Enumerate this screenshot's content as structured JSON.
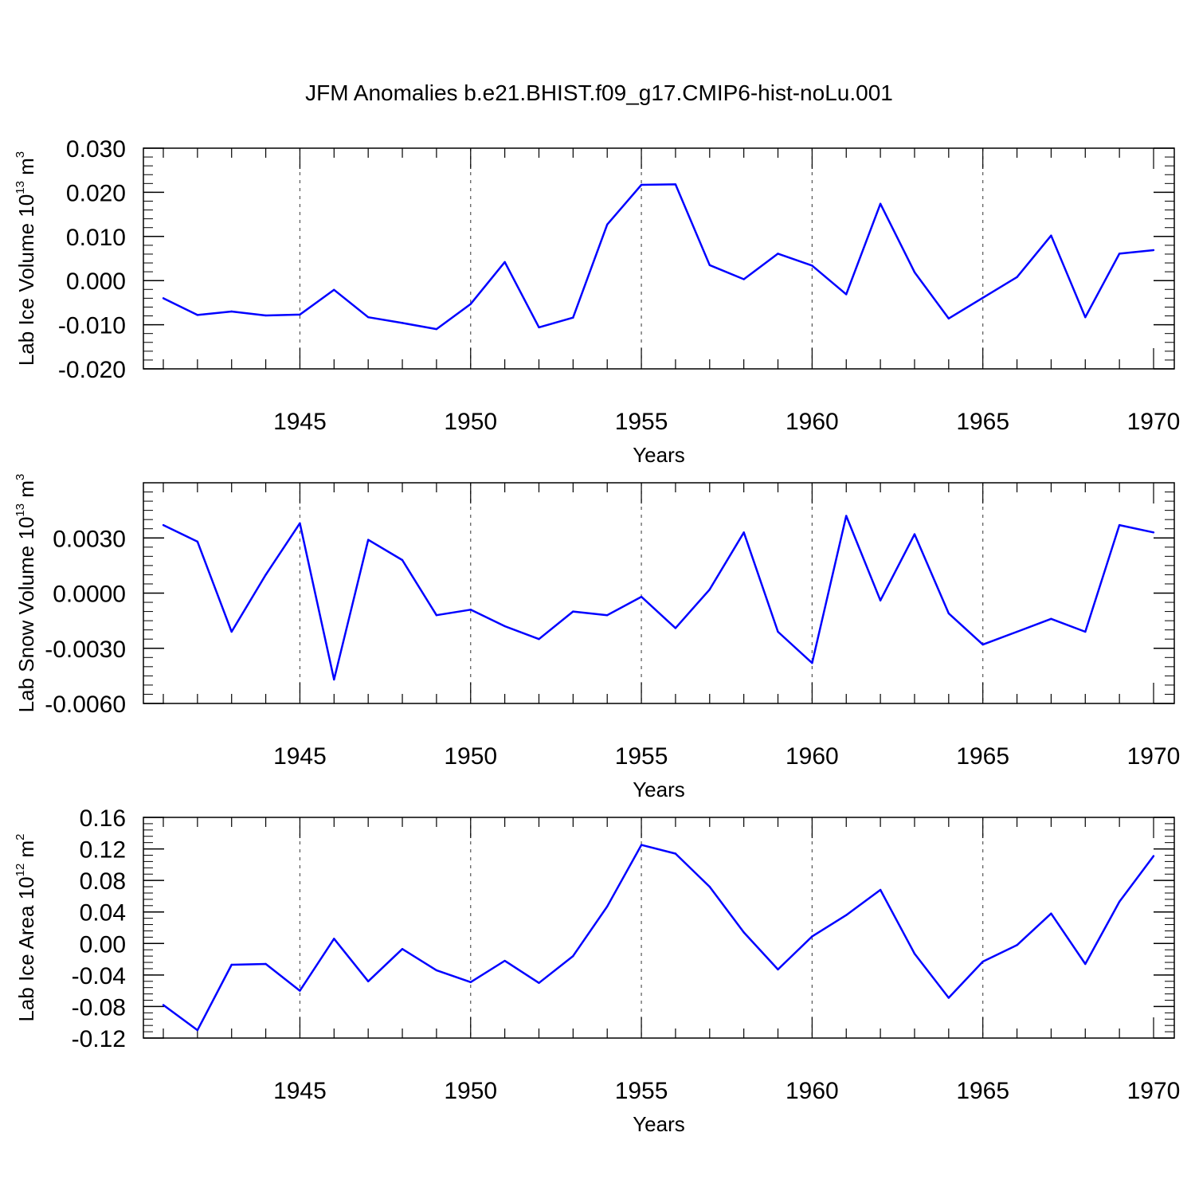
{
  "title": "JFM Anomalies b.e21.BHIST.f09_g17.CMIP6-hist-noLu.001",
  "colors": {
    "line": "#0000ff",
    "axis": "#000000",
    "grid": "#555555"
  },
  "chart_data": [
    {
      "type": "line",
      "ylabel": {
        "text": "Lab Ice Volume 10",
        "exp": "13",
        "unit": " m",
        "unit_exp": "3"
      },
      "xlabel": "Years",
      "xlim": [
        1941,
        1970
      ],
      "ylim": [
        -0.02,
        0.03
      ],
      "yticks": [
        -0.02,
        -0.01,
        0.0,
        0.01,
        0.02,
        0.03
      ],
      "yticklabels": [
        "-0.020",
        "-0.010",
        "0.000",
        "0.010",
        "0.020",
        "0.030"
      ],
      "yminor": 0.002,
      "xticks": [
        1945,
        1950,
        1955,
        1960,
        1965,
        1970
      ],
      "xticklabels": [
        "1945",
        "1950",
        "1955",
        "1960",
        "1965",
        "1970"
      ],
      "grid_x": true,
      "x": [
        1941,
        1942,
        1943,
        1944,
        1945,
        1946,
        1947,
        1948,
        1949,
        1950,
        1951,
        1952,
        1953,
        1954,
        1955,
        1956,
        1957,
        1958,
        1959,
        1960,
        1961,
        1962,
        1963,
        1964,
        1965,
        1966,
        1967,
        1968,
        1969,
        1970
      ],
      "values": [
        -0.004,
        -0.0078,
        -0.007,
        -0.0079,
        -0.0077,
        -0.0021,
        -0.0083,
        -0.0096,
        -0.011,
        -0.0053,
        0.0042,
        -0.0106,
        -0.0084,
        0.0127,
        0.0217,
        0.0218,
        0.0035,
        0.0003,
        0.0061,
        0.0034,
        -0.0031,
        0.0174,
        0.0019,
        -0.0086,
        -0.0039,
        0.0008,
        0.0102,
        -0.0083,
        0.0061,
        0.0069
      ]
    },
    {
      "type": "line",
      "ylabel": {
        "text": "Lab Snow Volume 10",
        "exp": "13",
        "unit": " m",
        "unit_exp": "3"
      },
      "xlabel": "Years",
      "xlim": [
        1941,
        1970
      ],
      "ylim": [
        -0.006,
        0.006
      ],
      "yticks": [
        -0.006,
        -0.003,
        0.0,
        0.003
      ],
      "yticklabels": [
        "-0.0060",
        "-0.0030",
        "0.0000",
        "0.0030"
      ],
      "yminor": 0.0005,
      "xticks": [
        1945,
        1950,
        1955,
        1960,
        1965,
        1970
      ],
      "xticklabels": [
        "1945",
        "1950",
        "1955",
        "1960",
        "1965",
        "1970"
      ],
      "grid_x": true,
      "x": [
        1941,
        1942,
        1943,
        1944,
        1945,
        1946,
        1947,
        1948,
        1949,
        1950,
        1951,
        1952,
        1953,
        1954,
        1955,
        1956,
        1957,
        1958,
        1959,
        1960,
        1961,
        1962,
        1963,
        1964,
        1965,
        1966,
        1967,
        1968,
        1969,
        1970
      ],
      "values": [
        0.0037,
        0.0028,
        -0.0021,
        0.001,
        0.0038,
        -0.0047,
        0.0029,
        0.0018,
        -0.0012,
        -0.0009,
        -0.0018,
        -0.0025,
        -0.001,
        -0.0012,
        -0.0002,
        -0.0019,
        0.0002,
        0.0033,
        -0.0021,
        -0.0038,
        0.0042,
        -0.0004,
        0.0032,
        -0.0011,
        -0.0028,
        -0.0021,
        -0.0014,
        -0.0021,
        0.0037,
        0.0033
      ]
    },
    {
      "type": "line",
      "ylabel": {
        "text": "Lab Ice Area 10",
        "exp": "12",
        "unit": " m",
        "unit_exp": "2"
      },
      "xlabel": "Years",
      "xlim": [
        1941,
        1970
      ],
      "ylim": [
        -0.12,
        0.16
      ],
      "yticks": [
        -0.12,
        -0.08,
        -0.04,
        0.0,
        0.04,
        0.08,
        0.12,
        0.16
      ],
      "yticklabels": [
        "-0.12",
        "-0.08",
        "-0.04",
        "0.00",
        "0.04",
        "0.08",
        "0.12",
        "0.16"
      ],
      "yminor": 0.008,
      "xticks": [
        1945,
        1950,
        1955,
        1960,
        1965,
        1970
      ],
      "xticklabels": [
        "1945",
        "1950",
        "1955",
        "1960",
        "1965",
        "1970"
      ],
      "grid_x": true,
      "x": [
        1941,
        1942,
        1943,
        1944,
        1945,
        1946,
        1947,
        1948,
        1949,
        1950,
        1951,
        1952,
        1953,
        1954,
        1955,
        1956,
        1957,
        1958,
        1959,
        1960,
        1961,
        1962,
        1963,
        1964,
        1965,
        1966,
        1967,
        1968,
        1969,
        1970
      ],
      "values": [
        -0.078,
        -0.11,
        -0.027,
        -0.026,
        -0.06,
        0.006,
        -0.048,
        -0.007,
        -0.034,
        -0.049,
        -0.022,
        -0.05,
        -0.016,
        0.047,
        0.125,
        0.114,
        0.072,
        0.014,
        -0.033,
        0.009,
        0.036,
        0.068,
        -0.013,
        -0.069,
        -0.023,
        -0.002,
        0.038,
        -0.026,
        0.053,
        0.111
      ]
    }
  ]
}
